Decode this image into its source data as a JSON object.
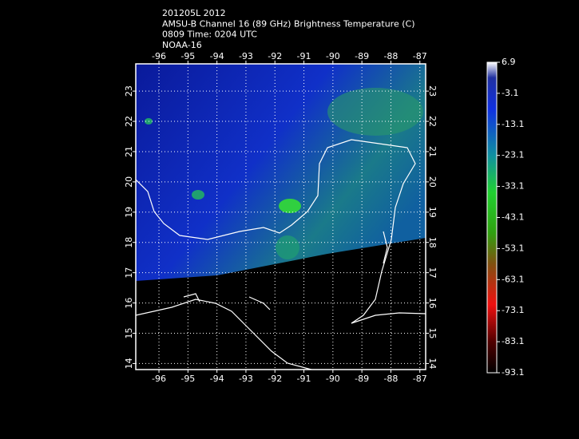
{
  "header": {
    "lines": [
      "201205L 2012",
      "AMSU-B Channel 16 (89 GHz) Brightness Temperature (C)",
      "0809 Time: 0204 UTC",
      "NOAA-16"
    ]
  },
  "map": {
    "lonlim": [
      -96.8,
      -86.8
    ],
    "latlim": [
      13.8,
      23.9
    ],
    "lon_ticks": [
      -96,
      -95,
      -94,
      -93,
      -92,
      -91,
      -90,
      -89,
      -88,
      -87
    ],
    "lat_ticks": [
      14,
      15,
      16,
      17,
      18,
      19,
      20,
      21,
      22,
      23
    ]
  },
  "colorbar": {
    "lim": [
      -93.1,
      6.9
    ],
    "ticks": [
      6.9,
      -3.1,
      -13.1,
      -23.1,
      -33.1,
      -43.1,
      -53.1,
      -63.1,
      -73.1,
      -83.1,
      -93.1
    ]
  }
}
